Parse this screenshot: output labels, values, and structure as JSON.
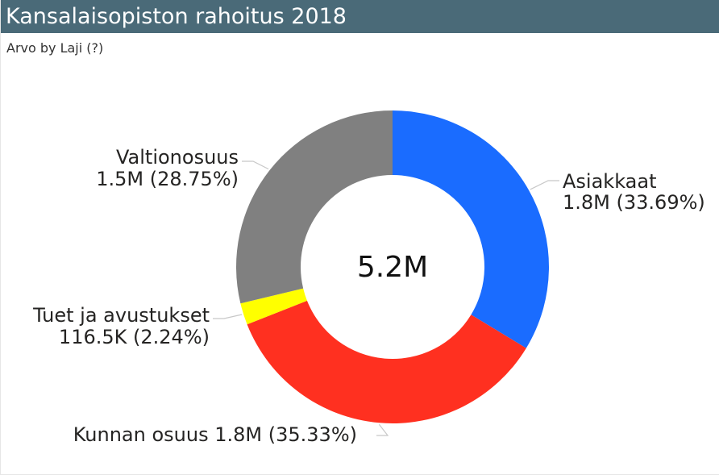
{
  "header": {
    "title": "Kansalaisopiston rahoitus 2018",
    "subtitle": "Arvo by Laji (?)"
  },
  "chart_data": {
    "type": "pie",
    "donut": true,
    "center_label": "5.2M",
    "total": 5200000,
    "slices": [
      {
        "name": "Asiakkaat",
        "value": 1752000,
        "value_label": "1.8M",
        "percent_label": "33.69%",
        "color": "#1a6cff"
      },
      {
        "name": "Kunnan osuus",
        "value": 1837000,
        "value_label": "1.8M",
        "percent_label": "35.33%",
        "color": "#ff3020"
      },
      {
        "name": "Tuet ja avustukset",
        "value": 116500,
        "value_label": "116.5K",
        "percent_label": "2.24%",
        "color": "#ffff00"
      },
      {
        "name": "Valtionosuus",
        "value": 1495000,
        "value_label": "1.5M",
        "percent_label": "28.75%",
        "color": "#808080"
      }
    ],
    "legend": "none"
  }
}
